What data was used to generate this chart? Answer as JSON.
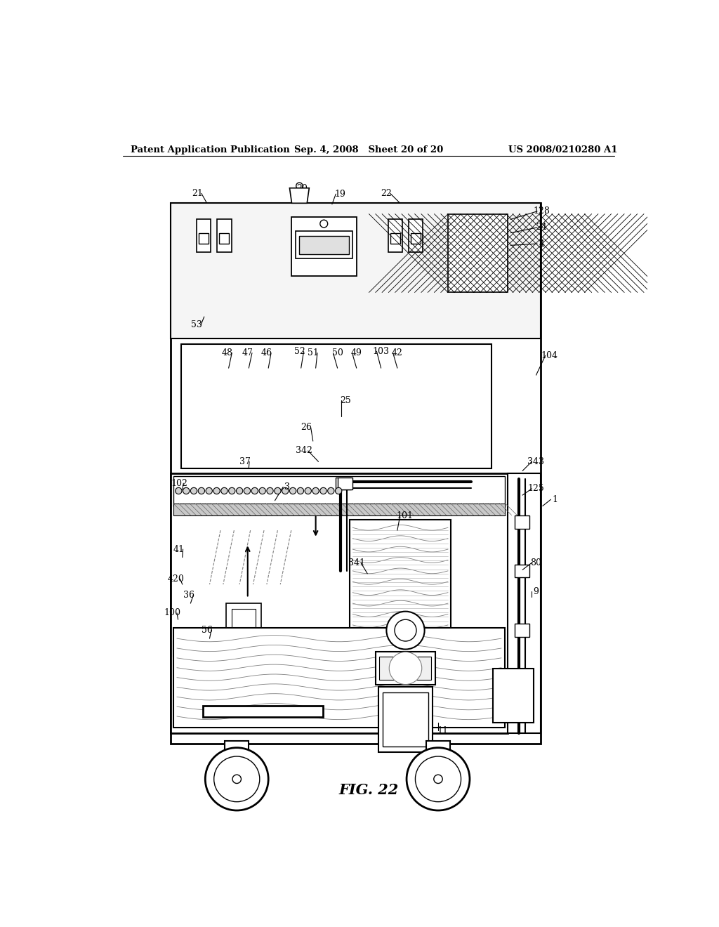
{
  "header_left": "Patent Application Publication",
  "header_mid": "Sep. 4, 2008   Sheet 20 of 20",
  "header_right": "US 2008/0210280 A1",
  "figure_label": "FIG. 22",
  "bg_color": "#ffffff"
}
